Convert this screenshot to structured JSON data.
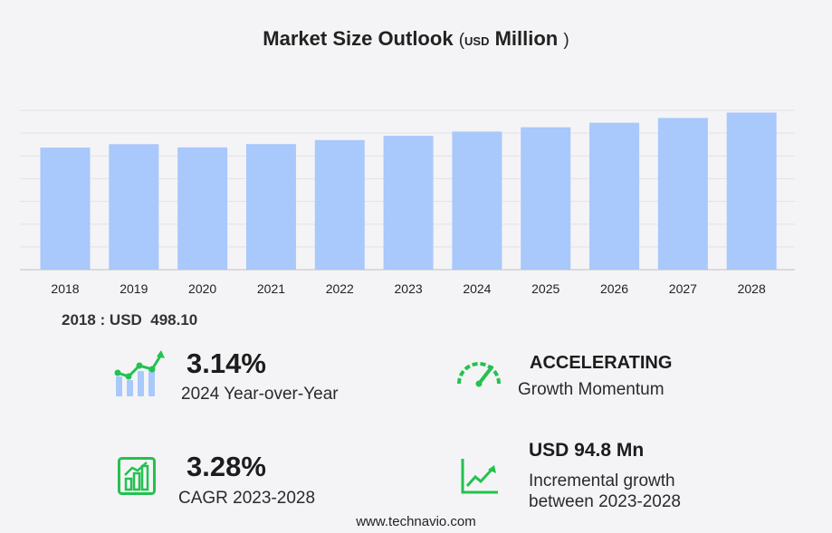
{
  "header": {
    "title": "Market Size Outlook",
    "unit_open": "(",
    "unit_currency": "USD",
    "unit_scale": "Million",
    "unit_close": ")"
  },
  "chart_data": {
    "type": "bar",
    "title": "Market Size Outlook",
    "unit": "USD Million",
    "categories": [
      "2018",
      "2019",
      "2020",
      "2021",
      "2022",
      "2023",
      "2024",
      "2025",
      "2026",
      "2027",
      "2028"
    ],
    "values": [
      498.1,
      512.3,
      499.0,
      512.5,
      528.9,
      546.2,
      563.4,
      581.1,
      599.6,
      619.3,
      641.0
    ],
    "ylim": [
      0,
      650
    ],
    "grid": true,
    "legend": "none"
  },
  "base": {
    "text": "2018 : USD  498.10"
  },
  "kpis": {
    "yoy": {
      "value": "3.14%",
      "label": "2024 Year-over-Year"
    },
    "momentum": {
      "value": "ACCELERATING",
      "label": "Growth Momentum"
    },
    "cagr": {
      "value": "3.28%",
      "label": "CAGR 2023-2028"
    },
    "incremental": {
      "value": "USD 94.8 Mn",
      "label_line1": "Incremental growth",
      "label_line2": "between 2023-2028"
    }
  },
  "colors": {
    "bar": "#a9c8fb",
    "icon_green": "#22c24f",
    "icon_blue": "#a9c8fb"
  },
  "icons": [
    "growth-chart-icon",
    "speedometer-icon",
    "bar-growth-icon",
    "trend-line-icon"
  ],
  "footer": {
    "text": "www.technavio.com"
  }
}
